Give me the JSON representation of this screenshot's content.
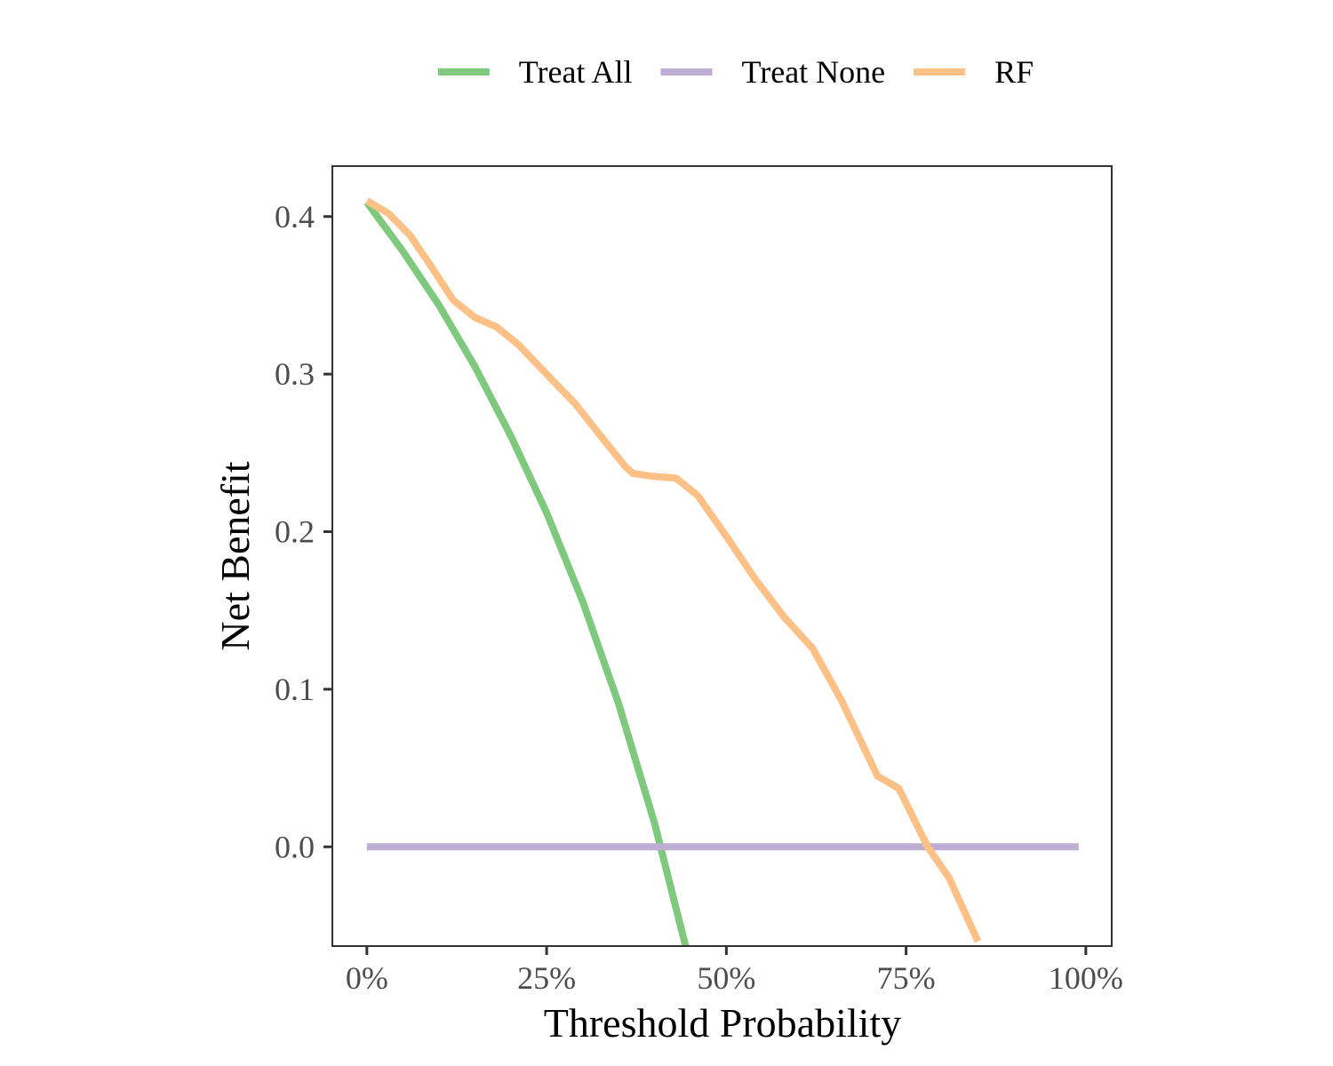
{
  "chart_data": {
    "type": "line",
    "title": "",
    "xlabel": "Threshold Probability",
    "ylabel": "Net Benefit",
    "xlim": [
      -0.048,
      1.036
    ],
    "ylim": [
      -0.063,
      0.432
    ],
    "x_ticks": [
      0,
      0.25,
      0.5,
      0.75,
      1.0
    ],
    "x_tick_labels": [
      "0%",
      "25%",
      "50%",
      "75%",
      "100%"
    ],
    "y_ticks": [
      0.0,
      0.1,
      0.2,
      0.3,
      0.4
    ],
    "y_tick_labels": [
      "0.0",
      "0.1",
      "0.2",
      "0.3",
      "0.4"
    ],
    "grid": false,
    "legend_position": "top",
    "series": [
      {
        "name": "Treat All",
        "color": "#7fc97f",
        "x": [
          0,
          0.05,
          0.1,
          0.15,
          0.2,
          0.25,
          0.3,
          0.35,
          0.4,
          0.45
        ],
        "y": [
          0.409,
          0.378,
          0.344,
          0.305,
          0.261,
          0.212,
          0.156,
          0.091,
          0.015,
          -0.075
        ]
      },
      {
        "name": "Treat None",
        "color": "#beaed4",
        "x": [
          0,
          0.99
        ],
        "y": [
          0,
          0
        ]
      },
      {
        "name": "RF",
        "color": "#fdc086",
        "x": [
          0,
          0.03,
          0.06,
          0.09,
          0.12,
          0.15,
          0.18,
          0.21,
          0.25,
          0.29,
          0.33,
          0.36,
          0.37,
          0.4,
          0.43,
          0.46,
          0.5,
          0.54,
          0.58,
          0.62,
          0.66,
          0.71,
          0.74,
          0.78,
          0.81,
          0.85
        ],
        "y": [
          0.41,
          0.402,
          0.388,
          0.368,
          0.347,
          0.336,
          0.33,
          0.319,
          0.3,
          0.281,
          0.258,
          0.241,
          0.237,
          0.235,
          0.234,
          0.223,
          0.197,
          0.17,
          0.146,
          0.126,
          0.093,
          0.045,
          0.037,
          0.0,
          -0.02,
          -0.06
        ]
      }
    ]
  }
}
